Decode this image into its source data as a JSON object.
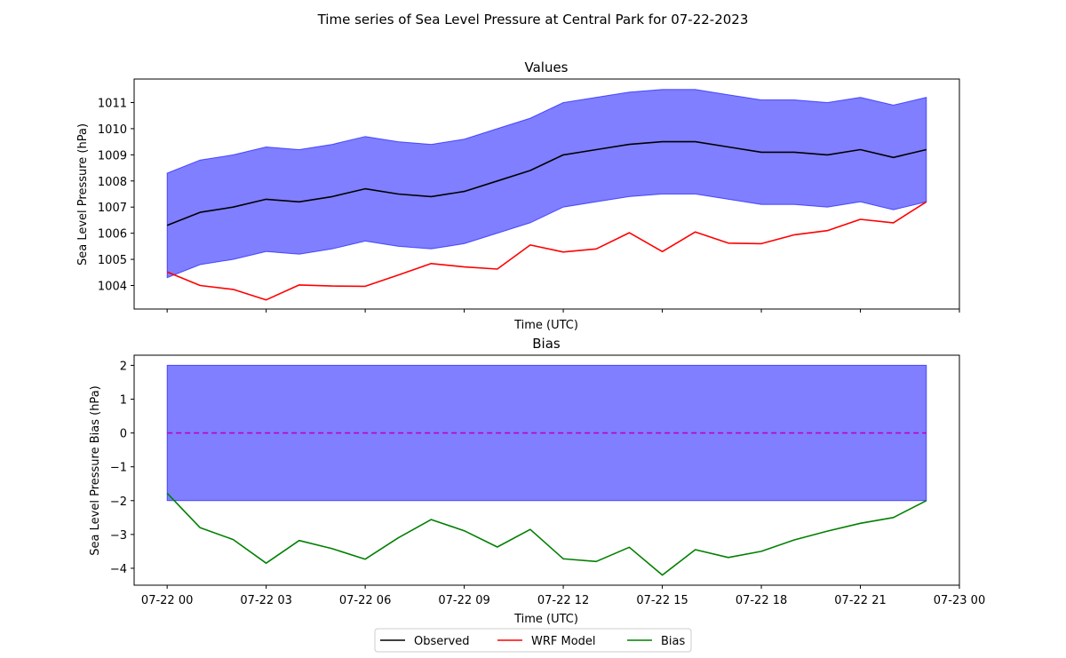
{
  "chart_data": [
    {
      "type": "line",
      "suptitle": "Time series of Sea Level Pressure at Central Park for 07-22-2023",
      "title": "Values",
      "xlabel": "Time (UTC)",
      "ylabel": "Sea Level Pressure (hPa)",
      "x_hours": [
        0,
        1,
        2,
        3,
        4,
        5,
        6,
        7,
        8,
        9,
        10,
        11,
        12,
        13,
        14,
        15,
        16,
        17,
        18,
        19,
        20,
        21,
        22,
        23
      ],
      "xlim": [
        -1.0,
        24.0
      ],
      "ylim": [
        1003.1,
        1011.9
      ],
      "yticks": [
        1004,
        1005,
        1006,
        1007,
        1008,
        1009,
        1010,
        1011
      ],
      "band": {
        "color": "#0000ff",
        "upper": [
          1008.3,
          1008.8,
          1009.0,
          1009.3,
          1009.2,
          1009.4,
          1009.7,
          1009.5,
          1009.4,
          1009.6,
          1010.0,
          1010.4,
          1011.0,
          1011.2,
          1011.4,
          1011.5,
          1011.5,
          1011.3,
          1011.1,
          1011.1,
          1011.0,
          1011.2,
          1010.9,
          1011.2
        ],
        "lower": [
          1004.3,
          1004.8,
          1005.0,
          1005.3,
          1005.2,
          1005.4,
          1005.7,
          1005.5,
          1005.4,
          1005.6,
          1006.0,
          1006.4,
          1007.0,
          1007.2,
          1007.4,
          1007.5,
          1007.5,
          1007.3,
          1007.1,
          1007.1,
          1007.0,
          1007.2,
          1006.9,
          1007.2
        ]
      },
      "series": [
        {
          "name": "Observed",
          "color": "#000000",
          "values": [
            1006.3,
            1006.8,
            1007.0,
            1007.3,
            1007.2,
            1007.4,
            1007.7,
            1007.5,
            1007.4,
            1007.6,
            1008.0,
            1008.4,
            1009.0,
            1009.2,
            1009.4,
            1009.5,
            1009.5,
            1009.3,
            1009.1,
            1009.1,
            1009.0,
            1009.2,
            1008.9,
            1009.2
          ]
        },
        {
          "name": "WRF Model",
          "color": "#ff0000",
          "values": [
            1004.52,
            1004.0,
            1003.85,
            1003.45,
            1004.02,
            1003.98,
            1003.97,
            1004.4,
            1004.84,
            1004.71,
            1004.63,
            1005.55,
            1005.28,
            1005.4,
            1006.02,
            1005.3,
            1006.05,
            1005.62,
            1005.6,
            1005.94,
            1006.1,
            1006.53,
            1006.4,
            1007.2
          ]
        }
      ],
      "xtick_labels": [
        "07-22 00",
        "07-22 03",
        "07-22 06",
        "07-22 09",
        "07-22 12",
        "07-22 15",
        "07-22 18",
        "07-22 21",
        "07-23 00"
      ],
      "xtick_hours": [
        0,
        3,
        6,
        9,
        12,
        15,
        18,
        21,
        24
      ]
    },
    {
      "type": "line",
      "title": "Bias",
      "xlabel": "Time (UTC)",
      "ylabel": "Sea Level Pressure Bias (hPa)",
      "x_hours": [
        0,
        1,
        2,
        3,
        4,
        5,
        6,
        7,
        8,
        9,
        10,
        11,
        12,
        13,
        14,
        15,
        16,
        17,
        18,
        19,
        20,
        21,
        22,
        23
      ],
      "xlim": [
        -1.0,
        24.0
      ],
      "ylim": [
        -4.5,
        2.3
      ],
      "yticks": [
        -4,
        -3,
        -2,
        -1,
        0,
        1,
        2
      ],
      "ytick_labels": [
        "−4",
        "−3",
        "−2",
        "−1",
        "0",
        "1",
        "2"
      ],
      "band": {
        "color": "#0000ff",
        "upper": 2,
        "lower": -2
      },
      "zero_line": {
        "value": 0,
        "color": "#c000c0"
      },
      "series": [
        {
          "name": "Bias",
          "color": "#008000",
          "values": [
            -1.78,
            -2.8,
            -3.15,
            -3.85,
            -3.18,
            -3.42,
            -3.73,
            -3.1,
            -2.56,
            -2.89,
            -3.37,
            -2.85,
            -3.72,
            -3.8,
            -3.38,
            -4.2,
            -3.45,
            -3.68,
            -3.5,
            -3.16,
            -2.9,
            -2.67,
            -2.5,
            -2.0
          ]
        }
      ],
      "xtick_labels": [
        "07-22 00",
        "07-22 03",
        "07-22 06",
        "07-22 09",
        "07-22 12",
        "07-22 15",
        "07-22 18",
        "07-22 21",
        "07-23 00"
      ],
      "xtick_hours": [
        0,
        3,
        6,
        9,
        12,
        15,
        18,
        21,
        24
      ]
    }
  ],
  "legend": {
    "position": "bottom-center",
    "entries": [
      {
        "label": "Observed",
        "color": "#000000"
      },
      {
        "label": "WRF Model",
        "color": "#ff0000"
      },
      {
        "label": "Bias",
        "color": "#008000"
      }
    ]
  }
}
